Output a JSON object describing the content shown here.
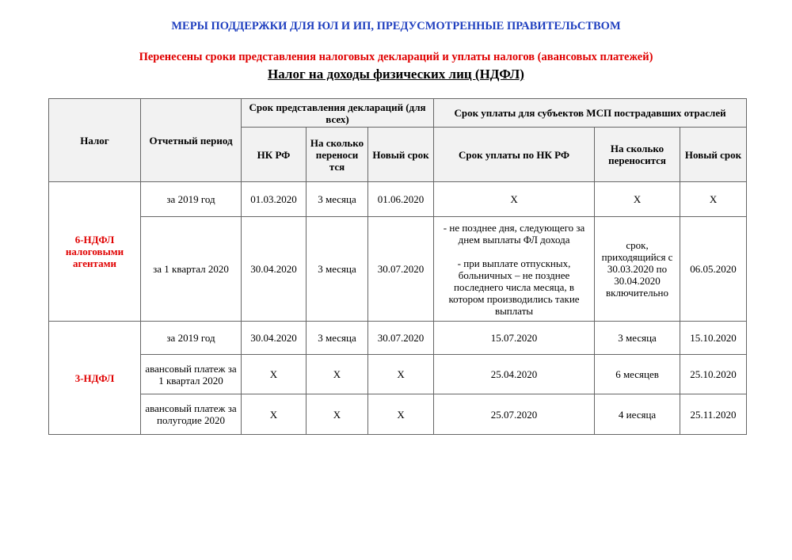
{
  "titles": {
    "main": "МЕРЫ ПОДДЕРЖКИ ДЛЯ ЮЛ И ИП, ПРЕДУСМОТРЕННЫЕ ПРАВИТЕЛЬСТВОМ",
    "subtitle": "Перенесены сроки представления налоговых деклараций и уплаты налогов (авансовых платежей)",
    "section": "Налог на доходы физических лиц (НДФЛ)"
  },
  "colors": {
    "main_title": "#1f3fbf",
    "accent_red": "#e00000",
    "header_bg": "#f2f2f2"
  },
  "table": {
    "headers": {
      "tax": "Налог",
      "period": "Отчетный период",
      "decl_group": "Срок представления деклараций (для всех)",
      "pay_group": "Срок уплаты для субъектов МСП пострадавших отраслей",
      "decl_nk": "НК РФ",
      "decl_shift": "На сколько переноси тся",
      "decl_new": "Новый срок",
      "pay_nk": "Срок уплаты по НК РФ",
      "pay_shift": "На сколько переносится",
      "pay_new": "Новый срок"
    },
    "groups": [
      {
        "tax": "6-НДФЛ налоговыми агентами",
        "rows": [
          {
            "period": "за 2019 год",
            "decl_nk": "01.03.2020",
            "decl_shift": "3 месяца",
            "decl_new": "01.06.2020",
            "pay_nk": "X",
            "pay_shift": "X",
            "pay_new": "X"
          },
          {
            "period": "за 1 квартал 2020",
            "decl_nk": "30.04.2020",
            "decl_shift": "3 месяца",
            "decl_new": "30.07.2020",
            "pay_nk": "- не позднее дня, следующего за днем выплаты ФЛ дохода\n\n- при выплате отпускных, больничных – не позднее последнего числа месяца, в котором производились такие выплаты",
            "pay_shift": "срок, приходящийся с 30.03.2020 по 30.04.2020 включительно",
            "pay_new": "06.05.2020"
          }
        ]
      },
      {
        "tax": "3-НДФЛ",
        "rows": [
          {
            "period": "за 2019 год",
            "decl_nk": "30.04.2020",
            "decl_shift": "3 месяца",
            "decl_new": "30.07.2020",
            "pay_nk": "15.07.2020",
            "pay_shift": "3 месяца",
            "pay_new": "15.10.2020"
          },
          {
            "period": "авансовый платеж за 1 квартал 2020",
            "decl_nk": "X",
            "decl_shift": "X",
            "decl_new": "X",
            "pay_nk": "25.04.2020",
            "pay_shift": "6 месяцев",
            "pay_new": "25.10.2020"
          },
          {
            "period": "авансовый платеж за полугодие 2020",
            "decl_nk": "X",
            "decl_shift": "X",
            "decl_new": "X",
            "pay_nk": "25.07.2020",
            "pay_shift": "4 иесяца",
            "pay_new": "25.11.2020"
          }
        ]
      }
    ]
  }
}
